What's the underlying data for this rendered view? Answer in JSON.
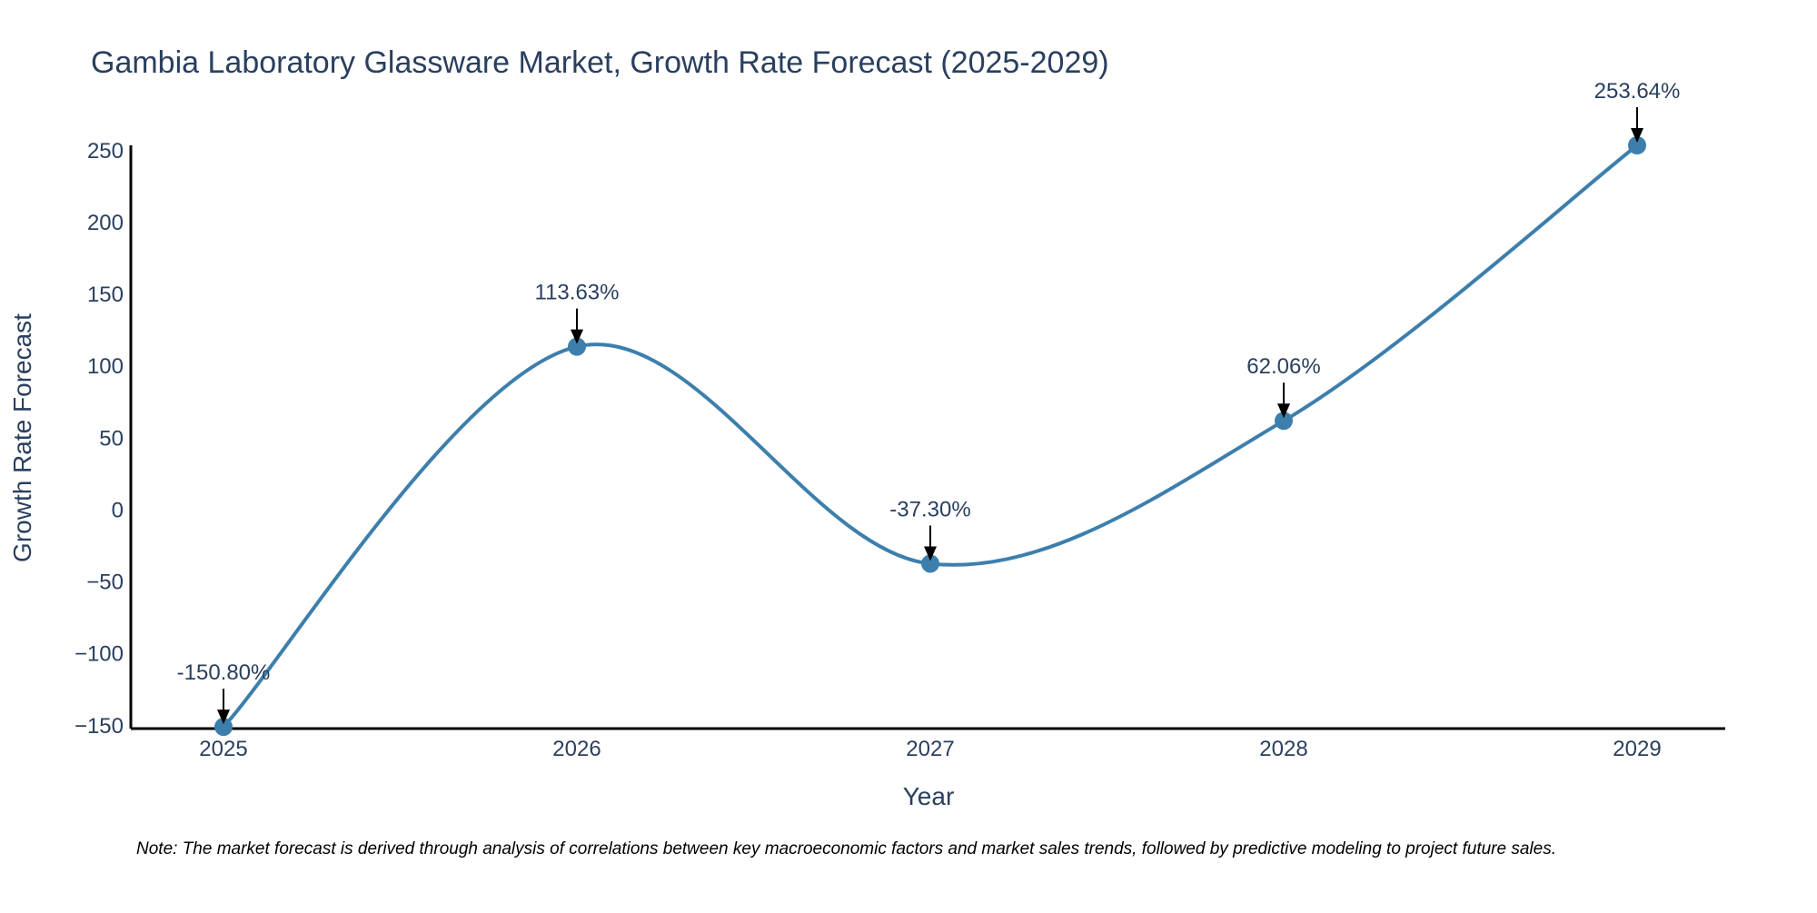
{
  "chart_data": {
    "type": "line",
    "title": "Gambia Laboratory Glassware Market, Growth Rate Forecast (2025-2029)",
    "xlabel": "Year",
    "ylabel": "Growth Rate Forecast",
    "categories": [
      "2025",
      "2026",
      "2027",
      "2028",
      "2029"
    ],
    "values": [
      -150.8,
      113.63,
      -37.3,
      62.06,
      253.64
    ],
    "data_labels": [
      "-150.80%",
      "113.63%",
      "-37.30%",
      "62.06%",
      "253.64%"
    ],
    "y_ticks": [
      250,
      200,
      150,
      100,
      50,
      0,
      -50,
      -100,
      -150
    ],
    "y_tick_labels": [
      "250",
      "200",
      "150",
      "100",
      "50",
      "0",
      "−50",
      "−100",
      "−150"
    ],
    "ylim": [
      -152,
      253.64
    ],
    "grid": false,
    "line_color": "#3d7fac",
    "marker_color": "#3d7fac",
    "note": "Note: The market forecast is derived through analysis of correlations between key macroeconomic factors and market sales trends, followed by predictive modeling to project future sales."
  }
}
